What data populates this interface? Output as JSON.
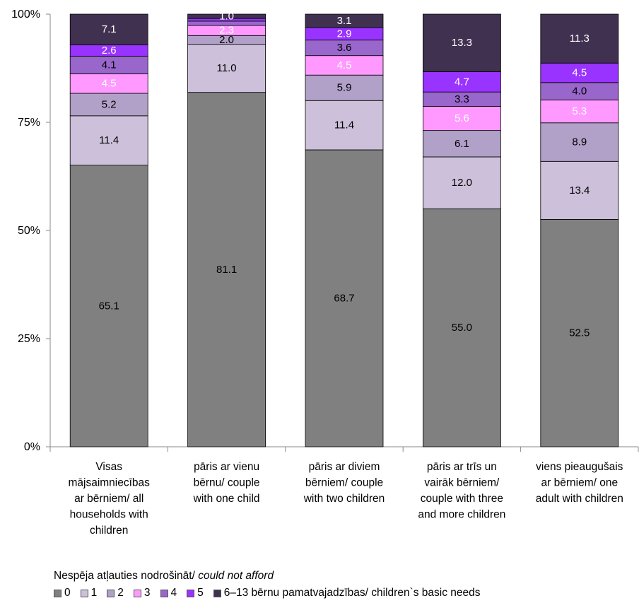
{
  "chart_data": {
    "type": "bar",
    "stacked": true,
    "percent_stacked": true,
    "y_tick_labels": [
      "0%",
      "25%",
      "50%",
      "75%",
      "100%"
    ],
    "ylim": [
      0,
      100
    ],
    "grid": false,
    "categories": [
      [
        "Visas",
        "mājsaimniecības",
        "ar bērniem/ all",
        "households with",
        "children"
      ],
      [
        "pāris ar vienu",
        "bērnu/ couple",
        "with one child"
      ],
      [
        "pāris ar diviem",
        "bērniem/ couple",
        "with two children"
      ],
      [
        "pāris ar trīs un",
        "vairāk bērniem/",
        "couple with three",
        "and more children"
      ],
      [
        "viens pieaugušais",
        "ar bērniem/ one",
        "adult with children"
      ]
    ],
    "series": [
      {
        "name": "0",
        "color": "#808080",
        "values": [
          65.1,
          81.1,
          68.7,
          55.0,
          52.5
        ]
      },
      {
        "name": "1",
        "color": "#ccc0da",
        "values": [
          11.4,
          11.0,
          11.4,
          12.0,
          13.4
        ]
      },
      {
        "name": "2",
        "color": "#b1a0c7",
        "values": [
          5.2,
          2.0,
          5.9,
          6.1,
          8.9
        ]
      },
      {
        "name": "3",
        "color": "#ff99ff",
        "values": [
          4.5,
          2.3,
          4.5,
          5.6,
          5.3
        ]
      },
      {
        "name": "4",
        "color": "#9966cc",
        "values": [
          4.1,
          1.0,
          3.6,
          3.3,
          4.0
        ]
      },
      {
        "name": "5",
        "color": "#9933ff",
        "values": [
          2.6,
          0.6,
          2.9,
          4.7,
          4.5
        ]
      },
      {
        "name": "6–13 bērnu pamatvajadzības/ children`s basic needs",
        "color": "#403151",
        "values": [
          7.1,
          1.0,
          3.1,
          13.3,
          11.3
        ]
      }
    ],
    "data_labels": [
      [
        "65.1",
        "11.4",
        "5.2",
        "4.5",
        "4.1",
        "2.6",
        "7.1"
      ],
      [
        "81.1",
        "11.0",
        "2.0",
        "2.3",
        "",
        "",
        "1.0"
      ],
      [
        "68.7",
        "11.4",
        "5.9",
        "4.5",
        "3.6",
        "2.9",
        "3.1"
      ],
      [
        "55.0",
        "12.0",
        "6.1",
        "5.6",
        "3.3",
        "4.7",
        "13.3"
      ],
      [
        "52.5",
        "13.4",
        "8.9",
        "5.3",
        "4.0",
        "4.5",
        "11.3"
      ]
    ],
    "label_light_series": [
      "3",
      "5",
      "6–13 bērnu pamatvajadzības/ children`s basic needs"
    ],
    "legend_title": "Nespēja atļauties nodrošināt/",
    "legend_title_italic": "could not afford",
    "legend_position": "bottom"
  }
}
